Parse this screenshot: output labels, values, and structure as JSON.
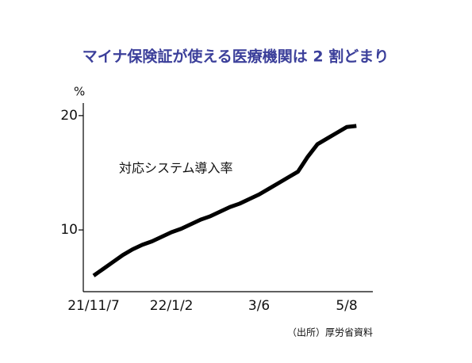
{
  "chart_data": {
    "type": "line",
    "title": "マイナ保険証が使える医療機関は 2 割どまり",
    "y_label": "%",
    "annotation": "対応システム導入率",
    "source": "（出所）厚労省資料",
    "categories": [
      "21/11/7",
      null,
      null,
      null,
      null,
      null,
      null,
      null,
      "22/1/2",
      null,
      null,
      null,
      null,
      null,
      null,
      null,
      null,
      "3/6",
      null,
      null,
      null,
      null,
      null,
      null,
      null,
      null,
      "5/8",
      null
    ],
    "values": [
      6.0,
      6.6,
      7.2,
      7.8,
      8.3,
      8.7,
      9.0,
      9.4,
      9.8,
      10.1,
      10.5,
      10.9,
      11.2,
      11.6,
      12.0,
      12.3,
      12.7,
      13.1,
      13.6,
      14.1,
      14.6,
      15.1,
      16.4,
      17.5,
      18.0,
      18.5,
      19.0,
      19.1
    ],
    "color": "#000000",
    "ylim": [
      4.6,
      21.1
    ],
    "yticks": [
      10,
      20
    ]
  }
}
